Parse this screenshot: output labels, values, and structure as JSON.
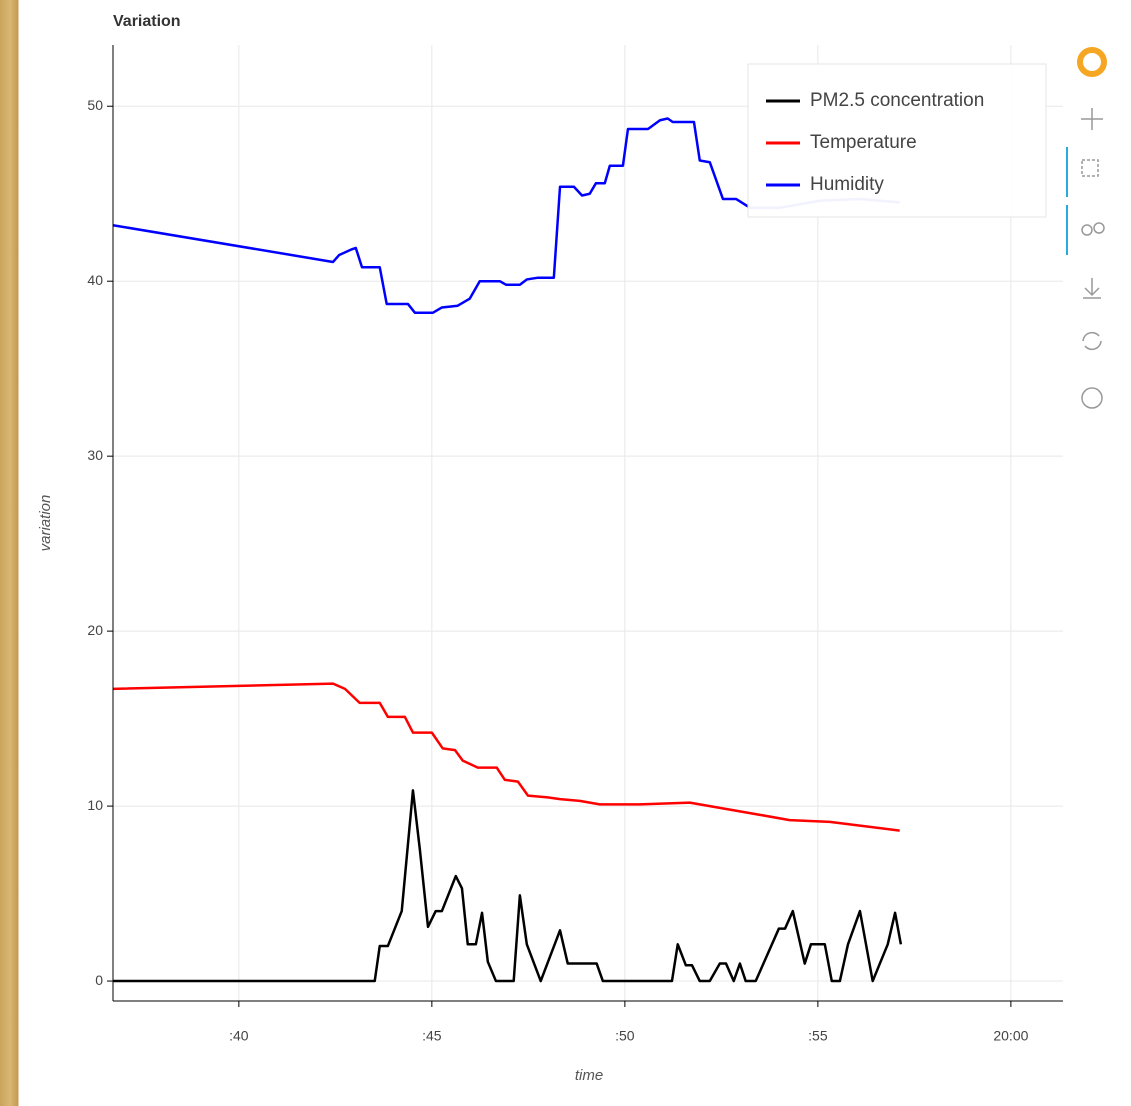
{
  "chart_data": {
    "type": "line",
    "title": "Variation",
    "x_label": "time",
    "y_label": "variation",
    "xlim": [
      36.74,
      61.35
    ],
    "ylim": [
      -1.14,
      53.5
    ],
    "xticks": [
      {
        "value": 40,
        "label": ":40"
      },
      {
        "value": 45,
        "label": ":45"
      },
      {
        "value": 50,
        "label": ":50"
      },
      {
        "value": 55,
        "label": ":55"
      },
      {
        "value": 60,
        "label": "20:00"
      }
    ],
    "yticks": [
      0,
      10,
      20,
      30,
      40,
      50
    ],
    "grid": true,
    "legend": "top-right",
    "series": [
      {
        "name": "PM2.5 concentration",
        "color": "#000000",
        "x": [
          36.74,
          43.52,
          43.65,
          43.86,
          44.22,
          44.51,
          44.69,
          44.9,
          45.1,
          45.26,
          45.62,
          45.78,
          45.93,
          46.14,
          46.3,
          46.45,
          46.66,
          47.12,
          47.28,
          47.46,
          47.82,
          48.32,
          48.52,
          49.27,
          49.43,
          51.22,
          51.37,
          51.58,
          51.74,
          51.94,
          52.2,
          52.46,
          52.62,
          52.82,
          52.98,
          53.13,
          53.39,
          53.99,
          54.15,
          54.35,
          54.66,
          54.82,
          55.18,
          55.36,
          55.57,
          55.78,
          56.09,
          56.42,
          56.81,
          57.0,
          57.15
        ],
        "values": [
          0,
          0,
          2,
          2,
          4,
          10.9,
          7.5,
          3.1,
          4,
          4,
          6,
          5.3,
          2.1,
          2.1,
          3.9,
          1.1,
          0,
          0,
          4.9,
          2.1,
          0,
          2.9,
          1,
          1,
          0,
          0,
          2.1,
          0.9,
          0.9,
          0,
          0,
          1,
          1,
          0,
          1,
          0,
          0,
          3,
          3,
          4,
          1,
          2.1,
          2.1,
          0,
          0,
          2.1,
          4,
          0,
          2.1,
          3.9,
          2.1
        ]
      },
      {
        "name": "Temperature",
        "color": "#ff0000",
        "x": [
          36.74,
          42.44,
          42.75,
          43.13,
          43.65,
          43.86,
          44.3,
          44.51,
          45.0,
          45.28,
          45.6,
          45.8,
          46.19,
          46.68,
          46.89,
          47.23,
          47.49,
          48.0,
          48.32,
          48.83,
          49.35,
          50.39,
          51.68,
          52.46,
          53.5,
          54.27,
          55.31,
          57.12
        ],
        "values": [
          16.7,
          17,
          16.7,
          15.9,
          15.9,
          15.1,
          15.1,
          14.2,
          14.2,
          13.3,
          13.2,
          12.6,
          12.2,
          12.2,
          11.5,
          11.4,
          10.6,
          10.5,
          10.4,
          10.3,
          10.1,
          10.1,
          10.2,
          9.9,
          9.5,
          9.2,
          9.1,
          8.6
        ]
      },
      {
        "name": "Humidity",
        "color": "#0000ff",
        "x": [
          36.74,
          42.44,
          42.6,
          42.9,
          43.03,
          43.19,
          43.65,
          43.83,
          44.38,
          44.56,
          45.03,
          45.26,
          45.67,
          45.98,
          46.24,
          46.76,
          46.92,
          47.28,
          47.46,
          47.75,
          48.16,
          48.32,
          48.68,
          48.89,
          49.09,
          49.25,
          49.48,
          49.61,
          49.95,
          50.08,
          50.6,
          50.91,
          51.11,
          51.24,
          51.79,
          51.94,
          52.2,
          52.54,
          52.88,
          53.24,
          54.02,
          55.05,
          56.09,
          57.12
        ],
        "values": [
          43.2,
          41.1,
          41.5,
          41.8,
          41.9,
          40.8,
          40.8,
          38.7,
          38.7,
          38.2,
          38.2,
          38.5,
          38.6,
          39,
          40,
          40,
          39.8,
          39.8,
          40.1,
          40.2,
          40.2,
          45.4,
          45.4,
          44.9,
          45,
          45.6,
          45.6,
          46.6,
          46.6,
          48.7,
          48.7,
          49.2,
          49.3,
          49.1,
          49.1,
          46.9,
          46.8,
          44.7,
          44.7,
          44.2,
          44.2,
          44.6,
          44.7,
          44.5
        ]
      }
    ]
  }
}
